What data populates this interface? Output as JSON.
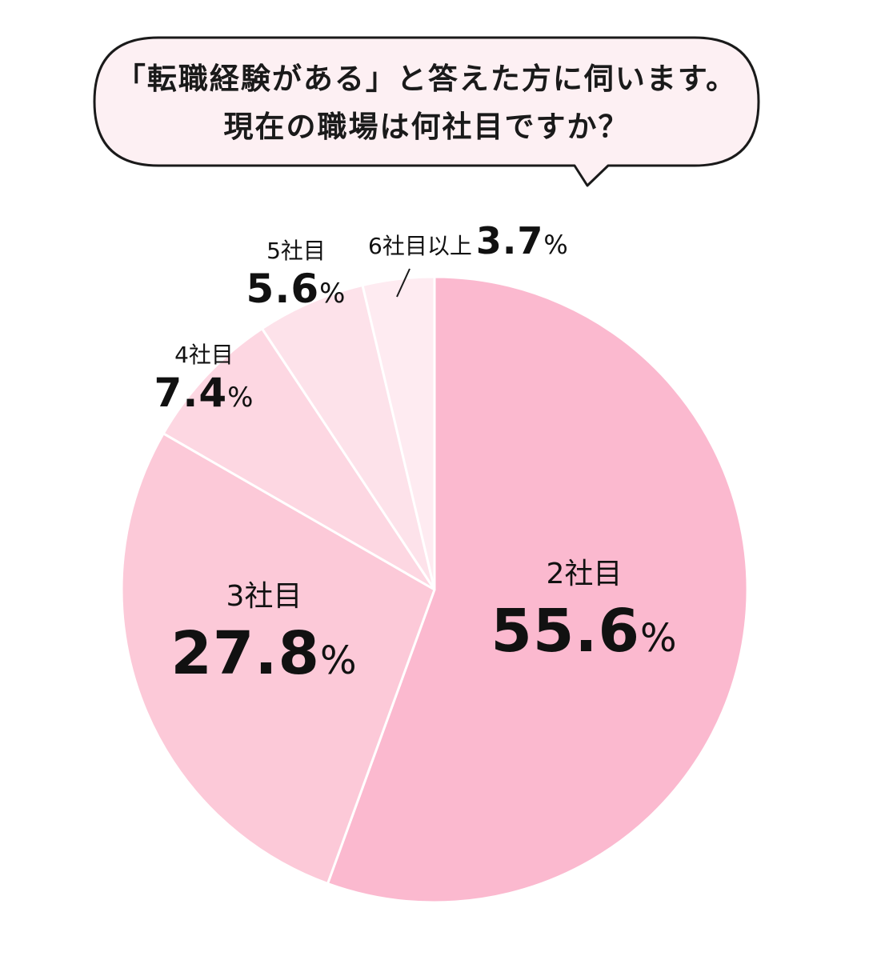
{
  "question": {
    "line1": "「転職経験がある」と答えた方に伺います。",
    "line2": "現在の職場は何社目ですか？"
  },
  "colors": {
    "bubble_fill": "#fdf0f3",
    "bubble_stroke": "#1a1a1a",
    "slice_divider": "#ffffff"
  },
  "chart_data": {
    "type": "pie",
    "start": "12 o'clock",
    "direction": "clockwise",
    "slices": [
      {
        "label": "2社目",
        "value": 55.6,
        "num": "55.6",
        "pct": "%",
        "color": "#fbb9cf"
      },
      {
        "label": "3社目",
        "value": 27.8,
        "num": "27.8",
        "pct": "%",
        "color": "#fcc9d8"
      },
      {
        "label": "4社目",
        "value": 7.4,
        "num": "7.4",
        "pct": "%",
        "color": "#fdd7e2"
      },
      {
        "label": "5社目",
        "value": 5.6,
        "num": "5.6",
        "pct": "%",
        "color": "#fde2ea"
      },
      {
        "label": "6社目以上",
        "value": 3.7,
        "num": "3.7",
        "pct": "%",
        "color": "#feebf1"
      }
    ]
  }
}
